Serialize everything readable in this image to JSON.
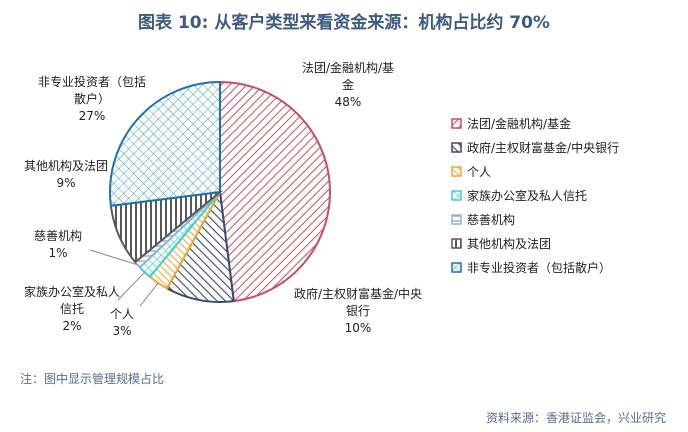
{
  "title": "图表 10: 从客户类型来看资金来源：机构占比约 70%",
  "note": "注：图中显示管理规模占比",
  "source": "资料来源：香港证监会，兴业研究",
  "colors": {
    "title": "#3d5a80",
    "slice_colors": [
      "#c94f5f",
      "#3b4a6b",
      "#f0a830",
      "#3ecfd0",
      "#8fb3dd",
      "#595959",
      "#1f6fb5"
    ]
  },
  "chart_data": {
    "type": "pie",
    "categories": [
      "法团/金融机构/基金",
      "政府/主权财富基金/中央银行",
      "个人",
      "家族办公室及私人信托",
      "慈善机构",
      "其他机构及法团",
      "非专业投资者（包括散户）"
    ],
    "values": [
      48,
      10,
      3,
      2,
      1,
      9,
      27
    ],
    "value_labels": [
      "48%",
      "10%",
      "3%",
      "2%",
      "1%",
      "9%",
      "27%"
    ],
    "legend_position": "right"
  }
}
